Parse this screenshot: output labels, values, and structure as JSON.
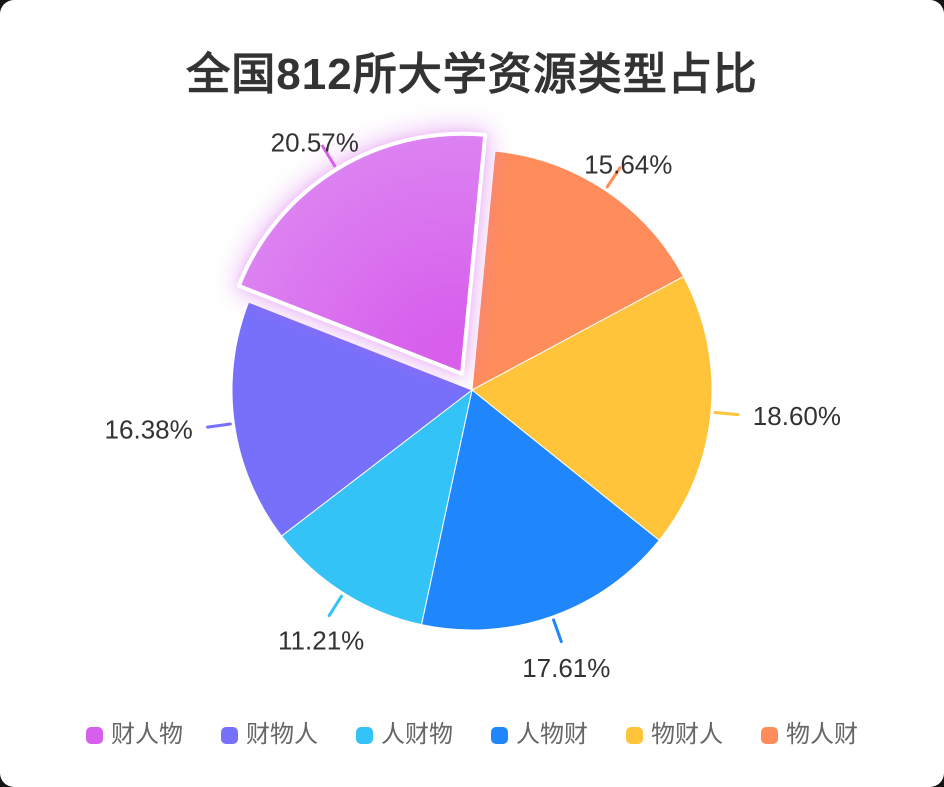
{
  "chart_data": {
    "type": "pie",
    "title": "全国812所大学资源类型占比",
    "legend_position": "bottom",
    "start_angle_deg_clockwise_from_top": 5.5,
    "slices": [
      {
        "name": "物人财",
        "value": 15.64,
        "label": "15.64%",
        "color": "#FF8D5B",
        "exploded": false
      },
      {
        "name": "物财人",
        "value": 18.6,
        "label": "18.60%",
        "color": "#FFC43A",
        "exploded": false
      },
      {
        "name": "人物财",
        "value": 17.61,
        "label": "17.61%",
        "color": "#1F87FB",
        "exploded": false
      },
      {
        "name": "人财物",
        "value": 11.21,
        "label": "11.21%",
        "color": "#33C3F7",
        "exploded": false
      },
      {
        "name": "财物人",
        "value": 16.38,
        "label": "16.38%",
        "color": "#7670FA",
        "exploded": false
      },
      {
        "name": "财人物",
        "value": 20.57,
        "label": "20.57%",
        "color": "#D75FEC",
        "color_outer": "#DC82F1",
        "exploded": true
      }
    ],
    "legend_order": [
      "财人物",
      "财物人",
      "人财物",
      "人物财",
      "物财人",
      "物人财"
    ]
  }
}
